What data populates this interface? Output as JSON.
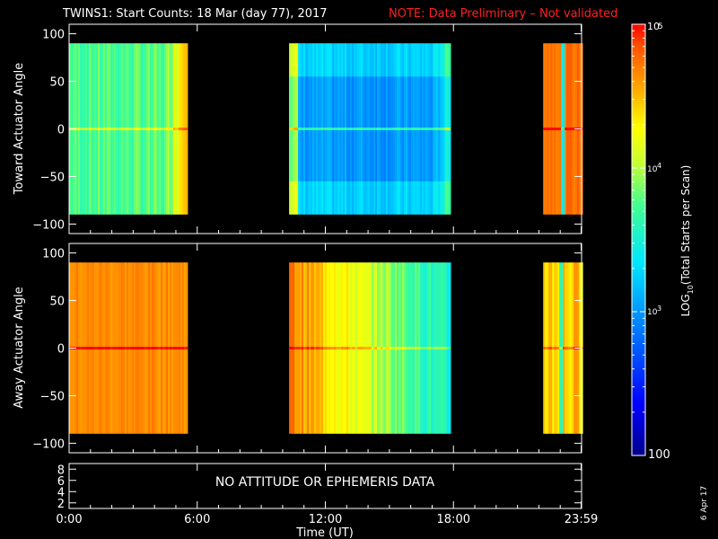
{
  "header": {
    "title": "TWINS1: Start Counts: 18 Mar (day  77), 2017",
    "note": "NOTE: Data Preliminary – Not validated",
    "note_color": "#ff2020"
  },
  "date_stamp": "6 Apr 17",
  "status_message": "NO ATTITUDE OR EPHEMERIS DATA",
  "chart_data": [
    {
      "type": "heatmap",
      "panel": "top",
      "ylabel": "Toward Actuator Angle",
      "ylim": [
        -110,
        110
      ],
      "yticks": [
        "100",
        "50",
        "0",
        "−50",
        "−100"
      ],
      "xlim_hours": [
        0,
        24
      ],
      "data_range_deg": [
        -90,
        90
      ],
      "blocks": [
        {
          "start_h": 0.0,
          "end_h": 5.5,
          "base_log": 3.75,
          "edge_log": 4.6,
          "note": "green-yellow, orange edge"
        },
        {
          "start_h": 10.3,
          "end_h": 17.8,
          "base_log": 3.2,
          "edge_log": 4.1,
          "note": "cyan/blue centre"
        },
        {
          "start_h": 22.2,
          "end_h": 23.98,
          "base_log": 4.7,
          "edge_log": 4.7,
          "note": "orange-red with spike"
        }
      ]
    },
    {
      "type": "heatmap",
      "panel": "bottom",
      "ylabel": "Away Actuator Angle",
      "ylim": [
        -110,
        110
      ],
      "yticks": [
        "100",
        "50",
        "0",
        "−50",
        "−100"
      ],
      "xlim_hours": [
        0,
        24
      ],
      "data_range_deg": [
        -90,
        90
      ],
      "blocks": [
        {
          "start_h": 0.0,
          "end_h": 5.5,
          "base_log": 4.65,
          "edge_log": 4.7,
          "note": "orange"
        },
        {
          "start_h": 10.3,
          "end_h": 17.8,
          "base_log": 3.8,
          "edge_log": 4.6,
          "note": "orange left, green-cyan right"
        },
        {
          "start_h": 22.2,
          "end_h": 23.98,
          "base_log": 4.4,
          "edge_log": 4.6,
          "note": "orange with cyan streaks"
        }
      ]
    },
    {
      "type": "line",
      "panel": "ephemeris",
      "yticks": [
        "8",
        "6",
        "4",
        "2"
      ],
      "ylim": [
        1,
        9
      ]
    }
  ],
  "x_axis": {
    "ticks": [
      "0:00",
      "6:00",
      "12:00",
      "18:00",
      "23:59"
    ],
    "label": "Time (UT)"
  },
  "colorbar": {
    "label": "LOG10(Total Starts per Scan)",
    "label_log": "LOG",
    "label_sub": "10",
    "label_rest": "(Total Starts per Scan)",
    "range_log": [
      2,
      5
    ],
    "tick_base": "10",
    "tick_100": "100",
    "tick_exp_3": "3",
    "tick_exp_4": "4",
    "tick_exp_5": "5"
  }
}
